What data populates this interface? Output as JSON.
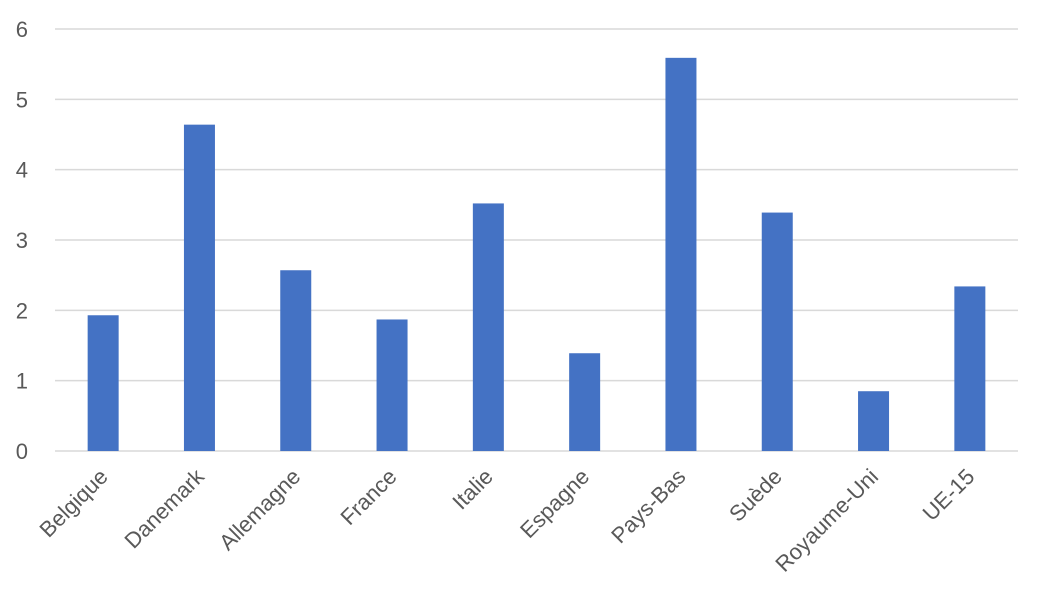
{
  "chart_data": {
    "type": "bar",
    "categories": [
      "Belgique",
      "Danemark",
      "Allemagne",
      "France",
      "Italie",
      "Espagne",
      "Pays-Bas",
      "Suède",
      "Royaume-Uni",
      "UE-15"
    ],
    "values": [
      1.93,
      4.64,
      2.57,
      1.87,
      3.52,
      1.39,
      5.59,
      3.39,
      0.85,
      2.34
    ],
    "title": "",
    "xlabel": "",
    "ylabel": "",
    "ylim": [
      0,
      6
    ],
    "yticks": [
      "0",
      "1",
      "2",
      "3",
      "4",
      "5",
      "6"
    ],
    "grid": true,
    "bar_color": "#4472C4",
    "grid_color": "#D9D9D9",
    "tick_color": "#595959"
  }
}
